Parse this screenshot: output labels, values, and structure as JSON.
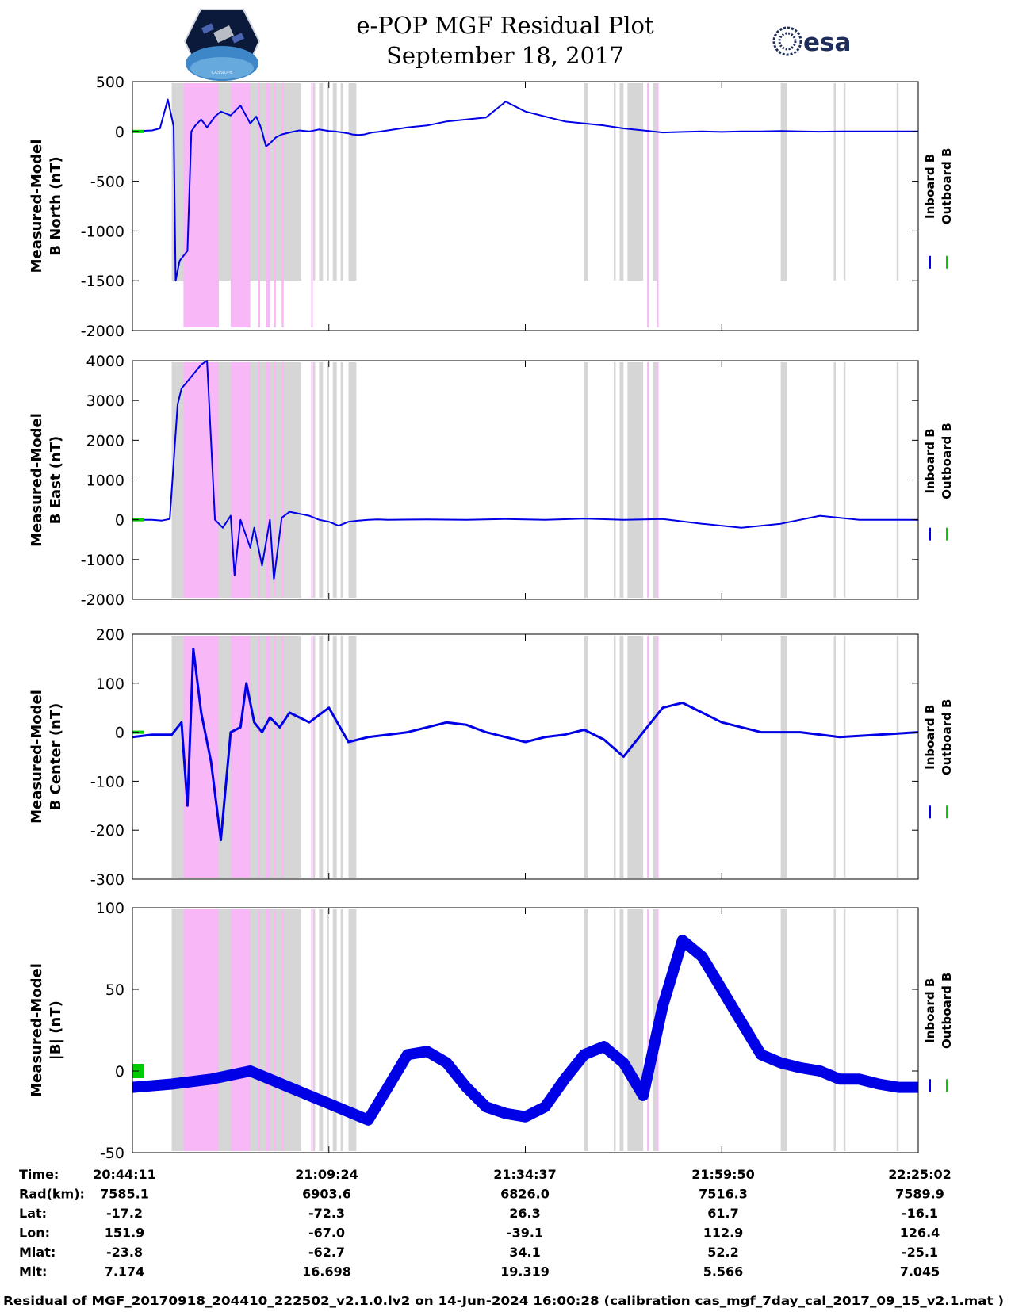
{
  "header": {
    "title_line1": "e-POP MGF Residual Plot",
    "title_line2": "September 18, 2017",
    "logo_left_text": "CASSIOPE",
    "logo_right_text": "esa"
  },
  "colors": {
    "inboard": "#0000e6",
    "outboard": "#00cc00",
    "shade_gray": "#d6d6d6",
    "shade_pink": "#f8b8f8",
    "axis": "#000000"
  },
  "chart_data": [
    {
      "type": "line",
      "panel": "north",
      "ylabel_line1": "Measured-Model",
      "ylabel_line2": "B North (nT)",
      "ylim": [
        -2000,
        500
      ],
      "yticks": [
        "500",
        "0",
        "-500",
        "-1000",
        "-1500",
        "-2000"
      ],
      "ytick_values": [
        500,
        0,
        -500,
        -1000,
        -1500,
        -2000
      ],
      "legend": [
        "Inboard B",
        "Outboard B"
      ],
      "series": [
        {
          "name": "Inboard B",
          "x": [
            0,
            0.04,
            0.1,
            0.14,
            0.18,
            0.21,
            0.22,
            0.225,
            0.23,
            0.24,
            0.26,
            0.28,
            0.3,
            0.32,
            0.35,
            0.38,
            0.42,
            0.45,
            0.5,
            0.55,
            0.6,
            0.63,
            0.65,
            0.66,
            0.67,
            0.68,
            0.7,
            0.73,
            0.76,
            0.8,
            0.85,
            0.9,
            0.95,
            1.0,
            1.03,
            1.07,
            1.1,
            1.12,
            1.15,
            1.18,
            1.2,
            1.22,
            1.25,
            1.3,
            1.4,
            1.5,
            1.6,
            1.7,
            1.8,
            1.9,
            2.0,
            2.1,
            2.2,
            2.3,
            2.4,
            2.5,
            2.6,
            2.7,
            2.8,
            2.9,
            3.0,
            3.1,
            3.2,
            3.3,
            3.4,
            3.5,
            3.6,
            3.7,
            3.8,
            3.9,
            4.0
          ],
          "values": [
            0,
            5,
            10,
            30,
            320,
            50,
            -1500,
            -1450,
            -1400,
            -1300,
            -1250,
            -1200,
            0,
            60,
            120,
            40,
            150,
            200,
            160,
            260,
            80,
            150,
            60,
            0,
            -80,
            -150,
            -120,
            -60,
            -30,
            -10,
            10,
            0,
            20,
            5,
            0,
            -10,
            -20,
            -30,
            -35,
            -30,
            -20,
            -10,
            -5,
            10,
            40,
            60,
            100,
            120,
            140,
            300,
            200,
            150,
            100,
            80,
            60,
            30,
            10,
            -10,
            -5,
            0,
            -5,
            0,
            0,
            5,
            0,
            -2,
            0,
            0,
            0,
            0,
            0
          ]
        }
      ],
      "outboard_range_x": [
        0,
        0.06
      ]
    },
    {
      "type": "line",
      "panel": "east",
      "ylabel_line1": "Measured-Model",
      "ylabel_line2": "B East (nT)",
      "ylim": [
        -2000,
        4000
      ],
      "yticks": [
        "4000",
        "3000",
        "2000",
        "1000",
        "0",
        "-1000",
        "-2000"
      ],
      "ytick_values": [
        4000,
        3000,
        2000,
        1000,
        0,
        -1000,
        -2000
      ],
      "legend": [
        "Inboard B",
        "Outboard B"
      ],
      "series": [
        {
          "name": "Inboard B",
          "x": [
            0,
            0.1,
            0.15,
            0.19,
            0.23,
            0.25,
            0.3,
            0.35,
            0.38,
            0.42,
            0.46,
            0.5,
            0.52,
            0.55,
            0.6,
            0.62,
            0.66,
            0.7,
            0.72,
            0.76,
            0.8,
            0.85,
            0.9,
            0.95,
            1.0,
            1.05,
            1.1,
            1.15,
            1.2,
            1.25,
            1.3,
            1.5,
            1.7,
            1.9,
            2.1,
            2.3,
            2.5,
            2.7,
            2.9,
            3.1,
            3.3,
            3.5,
            3.7,
            3.9,
            4.0
          ],
          "values": [
            0,
            0,
            -20,
            20,
            2900,
            3300,
            3600,
            3900,
            4000,
            0,
            -200,
            100,
            -1400,
            0,
            -700,
            -200,
            -1150,
            0,
            -1500,
            50,
            200,
            150,
            100,
            0,
            -50,
            -150,
            -50,
            -20,
            0,
            10,
            0,
            10,
            0,
            20,
            0,
            30,
            0,
            20,
            -100,
            -200,
            -100,
            100,
            0,
            0,
            0
          ]
        }
      ],
      "outboard_range_x": [
        0,
        0.06
      ]
    },
    {
      "type": "line",
      "panel": "center",
      "ylabel_line1": "Measured-Model",
      "ylabel_line2": "B Center (nT)",
      "ylim": [
        -300,
        200
      ],
      "yticks": [
        "200",
        "100",
        "0",
        "-100",
        "-200",
        "-300"
      ],
      "ytick_values": [
        200,
        100,
        0,
        -100,
        -200,
        -300
      ],
      "legend": [
        "Inboard B",
        "Outboard B"
      ],
      "series": [
        {
          "name": "Inboard B",
          "x": [
            0,
            0.1,
            0.2,
            0.25,
            0.28,
            0.31,
            0.35,
            0.4,
            0.45,
            0.5,
            0.55,
            0.58,
            0.62,
            0.66,
            0.7,
            0.75,
            0.8,
            0.9,
            1.0,
            1.1,
            1.2,
            1.3,
            1.4,
            1.5,
            1.6,
            1.7,
            1.8,
            1.9,
            2.0,
            2.1,
            2.2,
            2.3,
            2.4,
            2.5,
            2.6,
            2.7,
            2.8,
            2.9,
            3.0,
            3.2,
            3.4,
            3.6,
            3.8,
            4.0
          ],
          "values": [
            -10,
            -5,
            -5,
            20,
            -150,
            170,
            40,
            -60,
            -220,
            0,
            10,
            100,
            20,
            0,
            30,
            10,
            40,
            20,
            50,
            -20,
            -10,
            -5,
            0,
            10,
            20,
            15,
            0,
            -10,
            -20,
            -10,
            -5,
            5,
            -15,
            -50,
            0,
            50,
            60,
            40,
            20,
            0,
            0,
            -10,
            -5,
            0
          ]
        }
      ],
      "outboard_range_x": [
        0,
        0.06
      ]
    },
    {
      "type": "line",
      "panel": "magnitude",
      "ylabel_line1": "Measured-Model",
      "ylabel_line2": "|B| (nT)",
      "ylim": [
        -50,
        100
      ],
      "yticks": [
        "100",
        "50",
        "0",
        "-50"
      ],
      "ytick_values": [
        100,
        50,
        0,
        -50
      ],
      "legend": [
        "Inboard B",
        "Outboard B"
      ],
      "series": [
        {
          "name": "Inboard B",
          "x": [
            0,
            0.2,
            0.4,
            0.6,
            0.8,
            1.0,
            1.2,
            1.3,
            1.4,
            1.5,
            1.6,
            1.7,
            1.8,
            1.9,
            2.0,
            2.1,
            2.2,
            2.3,
            2.4,
            2.5,
            2.6,
            2.7,
            2.8,
            2.9,
            3.0,
            3.1,
            3.2,
            3.3,
            3.4,
            3.5,
            3.6,
            3.7,
            3.8,
            3.9,
            4.0
          ],
          "values": [
            -10,
            -8,
            -5,
            0,
            -10,
            -20,
            -30,
            -10,
            10,
            12,
            5,
            -10,
            -22,
            -26,
            -28,
            -22,
            -5,
            10,
            15,
            5,
            -15,
            40,
            80,
            70,
            50,
            30,
            10,
            5,
            2,
            0,
            -5,
            -5,
            -8,
            -10,
            -10
          ]
        }
      ],
      "outboard_range_x": [
        0,
        0.06
      ]
    }
  ],
  "shading": {
    "gray": [
      [
        0.2,
        0.86
      ],
      [
        0.92,
        0.93
      ],
      [
        0.95,
        0.97
      ],
      [
        0.99,
        1.0
      ],
      [
        1.02,
        1.04
      ],
      [
        1.06,
        1.07
      ],
      [
        1.1,
        1.14
      ],
      [
        2.3,
        2.32
      ],
      [
        2.45,
        2.46
      ],
      [
        2.48,
        2.5
      ],
      [
        2.52,
        2.6
      ],
      [
        2.65,
        2.67
      ],
      [
        3.3,
        3.33
      ],
      [
        3.57,
        3.58
      ],
      [
        3.62,
        3.63
      ],
      [
        3.89,
        3.9
      ]
    ],
    "pink": [
      [
        0.26,
        0.44
      ],
      [
        0.5,
        0.6
      ],
      [
        0.64,
        0.65
      ],
      [
        0.68,
        0.7
      ],
      [
        0.72,
        0.73
      ],
      [
        0.76,
        0.77
      ],
      [
        0.91,
        0.915
      ],
      [
        2.62,
        2.625
      ],
      [
        2.67,
        2.675
      ]
    ]
  },
  "table": {
    "row_labels": [
      "Time:",
      "Rad(km):",
      "Lat:",
      "Lon:",
      "Mlat:",
      "Mlt:"
    ],
    "columns": [
      [
        "20:44:11",
        "7585.1",
        "-17.2",
        "151.9",
        "-23.8",
        "7.174"
      ],
      [
        "21:09:24",
        "6903.6",
        "-72.3",
        "-67.0",
        "-62.7",
        "16.698"
      ],
      [
        "21:34:37",
        "6826.0",
        "26.3",
        "-39.1",
        "34.1",
        "19.319"
      ],
      [
        "21:59:50",
        "7516.3",
        "61.7",
        "112.9",
        "52.2",
        "5.566"
      ],
      [
        "22:25:02",
        "7589.9",
        "-16.1",
        "126.4",
        "-25.1",
        "7.045"
      ]
    ]
  },
  "footer": "Residual of MGF_20170918_204410_222502_v2.1.0.lv2 on 14-Jun-2024 16:00:28 (calibration cas_mgf_7day_cal_2017_09_15_v2.1.mat )"
}
